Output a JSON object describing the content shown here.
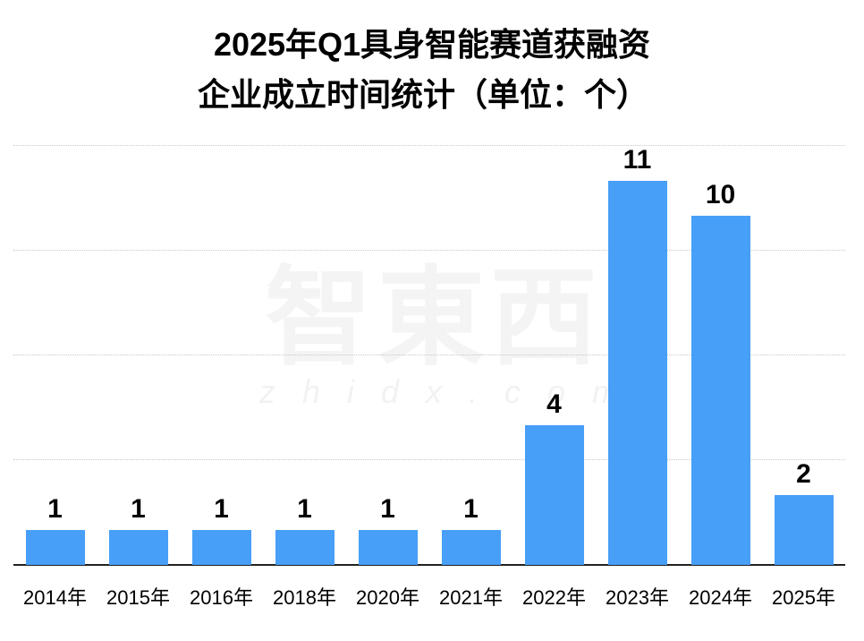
{
  "title": {
    "line1": "2025年Q1具身智能赛道获融资",
    "line2": "企业成立时间统计（单位：个）"
  },
  "watermark": {
    "cn": "智東西",
    "en": "zhidx.com"
  },
  "colors": {
    "bar": "#479ff7",
    "grid": "#c8c8c8",
    "axis": "#222222"
  },
  "chart_data": {
    "type": "bar",
    "title": "2025年Q1具身智能赛道获融资企业成立时间统计（单位：个）",
    "xlabel": "",
    "ylabel": "",
    "categories": [
      "2014年",
      "2015年",
      "2016年",
      "2018年",
      "2020年",
      "2021年",
      "2022年",
      "2023年",
      "2024年",
      "2025年"
    ],
    "values": [
      1,
      1,
      1,
      1,
      1,
      1,
      4,
      11,
      10,
      2
    ],
    "value_labels": [
      "1",
      "1",
      "1",
      "1",
      "1",
      "1",
      "4",
      "11",
      "10",
      "2"
    ],
    "ylim": [
      0,
      12
    ],
    "gridlines": [
      3,
      6,
      9,
      12
    ],
    "grid": true,
    "legend": null,
    "y_tick_labels_visible": false
  }
}
